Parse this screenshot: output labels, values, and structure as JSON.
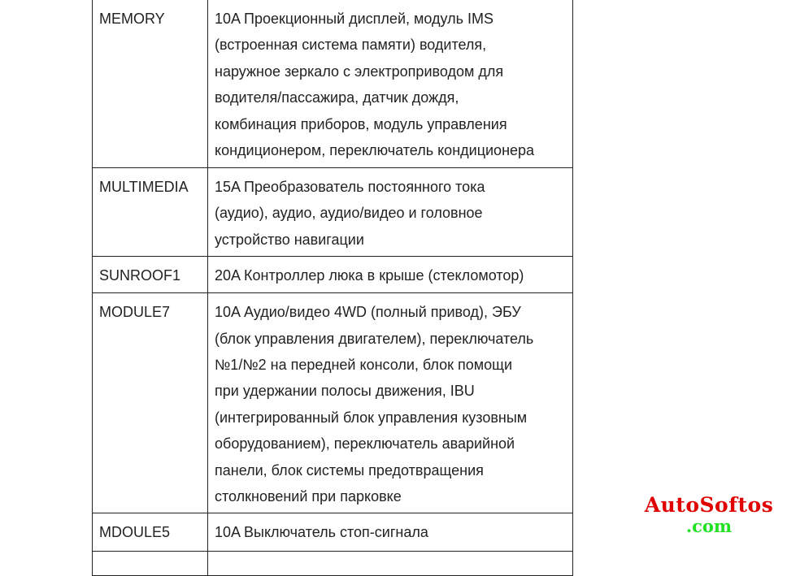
{
  "rows": [
    {
      "fuse": "MEMORY",
      "lines": [
        "10A Проекционный дисплей, модуль IMS",
        "(встроенная система памяти) водителя,",
        "наружное зеркало с электроприводом для",
        "водителя/пассажира, датчик дождя,",
        "комбинация приборов, модуль управления",
        "кондиционером, переключатель кондиционера"
      ]
    },
    {
      "fuse": "MULTIMEDIA",
      "lines": [
        "15A Преобразователь постоянного тока",
        "(аудио), аудио, аудио/видео и головное",
        "устройство навигации"
      ]
    },
    {
      "fuse": "SUNROOF1",
      "lines": [
        "20A Контроллер люка в крыше (стекломотор)"
      ]
    },
    {
      "fuse": "MODULE7",
      "lines": [
        "10A Аудио/видео 4WD (полный привод), ЭБУ",
        "(блок управления двигателем), переключатель",
        "№1/№2 на передней консоли, блок помощи",
        "при удержании полосы движения, IBU",
        "(интегрированный блок управления кузовным",
        "оборудованием), переключатель аварийной",
        "панели, блок системы предотвращения",
        "столкновений при парковке"
      ]
    },
    {
      "fuse": "MDOULE5",
      "lines": [
        "10A Выключатель стоп-сигнала"
      ]
    }
  ],
  "watermark": {
    "line1": "AutoSoftos",
    "line2": ".com",
    "color1": "#e00000",
    "color2": "#22e022"
  }
}
